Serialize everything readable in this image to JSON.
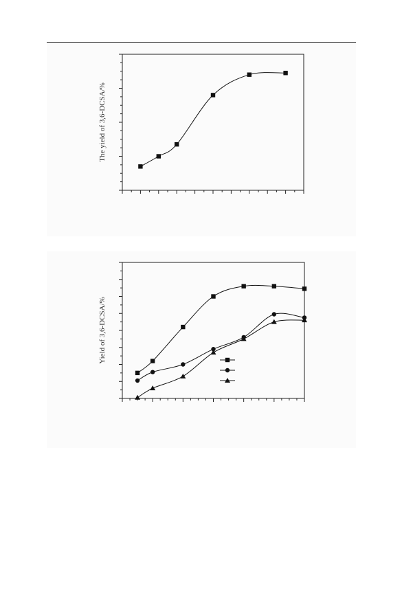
{
  "chart_data": [
    {
      "type": "line",
      "title": "",
      "xlabel": "",
      "ylabel": "The yield of 3,6-DCSA/%",
      "xlim": [
        0,
        10
      ],
      "ylim": [
        0,
        8
      ],
      "grid": false,
      "legend": "none",
      "series": [
        {
          "marker": "square",
          "x": [
            1,
            2,
            3,
            5,
            7,
            9
          ],
          "y": [
            1.4,
            2.0,
            2.7,
            5.6,
            6.8,
            6.9
          ]
        }
      ]
    },
    {
      "type": "line",
      "title": "",
      "xlabel": "",
      "ylabel": "Yield of 3,6-DCSA/%",
      "xlim": [
        0,
        12
      ],
      "ylim": [
        0,
        8
      ],
      "grid": false,
      "legend": "center-right",
      "series": [
        {
          "marker": "square",
          "x": [
            1,
            2,
            4,
            6,
            8,
            10,
            12
          ],
          "y": [
            1.5,
            2.2,
            4.2,
            6.0,
            6.6,
            6.6,
            6.45
          ]
        },
        {
          "marker": "circle",
          "x": [
            1,
            2,
            4,
            6,
            8,
            10,
            12
          ],
          "y": [
            1.05,
            1.55,
            2.0,
            2.9,
            3.6,
            4.95,
            4.75
          ]
        },
        {
          "marker": "triangle",
          "x": [
            1,
            2,
            4,
            6,
            8,
            10,
            12
          ],
          "y": [
            0.05,
            0.6,
            1.3,
            2.7,
            3.5,
            4.5,
            4.6
          ]
        }
      ]
    }
  ]
}
